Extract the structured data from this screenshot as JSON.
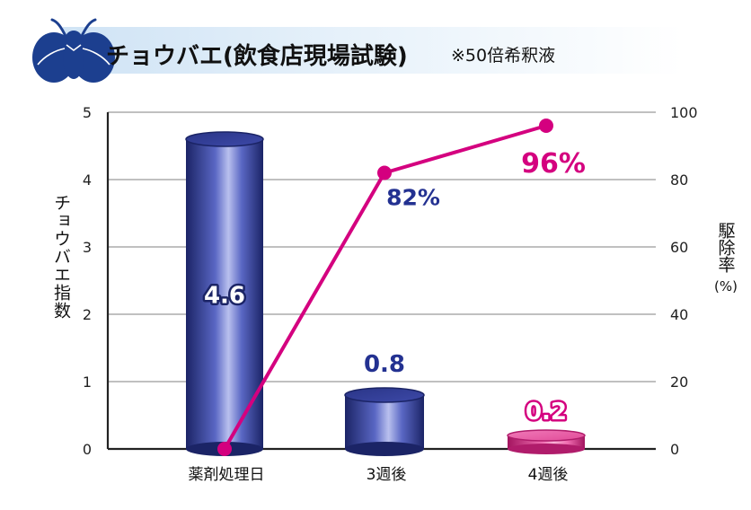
{
  "header": {
    "title": "チョウバエ(飲食店現場試験)",
    "subtitle": "※50倍希釈液",
    "icon": "fly-icon"
  },
  "chart_data": {
    "type": "bar+line",
    "categories": [
      "薬剤処理日",
      "3週後",
      "4週後"
    ],
    "bar_series": {
      "values": [
        4.6,
        0.8,
        0.2
      ],
      "labels": [
        "4.6",
        "0.8",
        "0.2"
      ],
      "colors": [
        "#2e3b8f",
        "#2e3b8f",
        "#e0358f"
      ]
    },
    "line_series": {
      "values": [
        0,
        82,
        96
      ],
      "labels": [
        "",
        "82%",
        "96%"
      ],
      "color": "#d4007f"
    },
    "ylabel_left": "チョウバエ指数",
    "ylabel_right": "駆除率",
    "ylabel_right_unit": "(%)",
    "ylim_left": [
      0,
      5
    ],
    "ylim_right": [
      0,
      100
    ],
    "yticks_left": [
      "0",
      "1",
      "2",
      "3",
      "4",
      "5"
    ],
    "yticks_right": [
      "0",
      "20",
      "40",
      "60",
      "80",
      "100"
    ],
    "grid": true
  }
}
